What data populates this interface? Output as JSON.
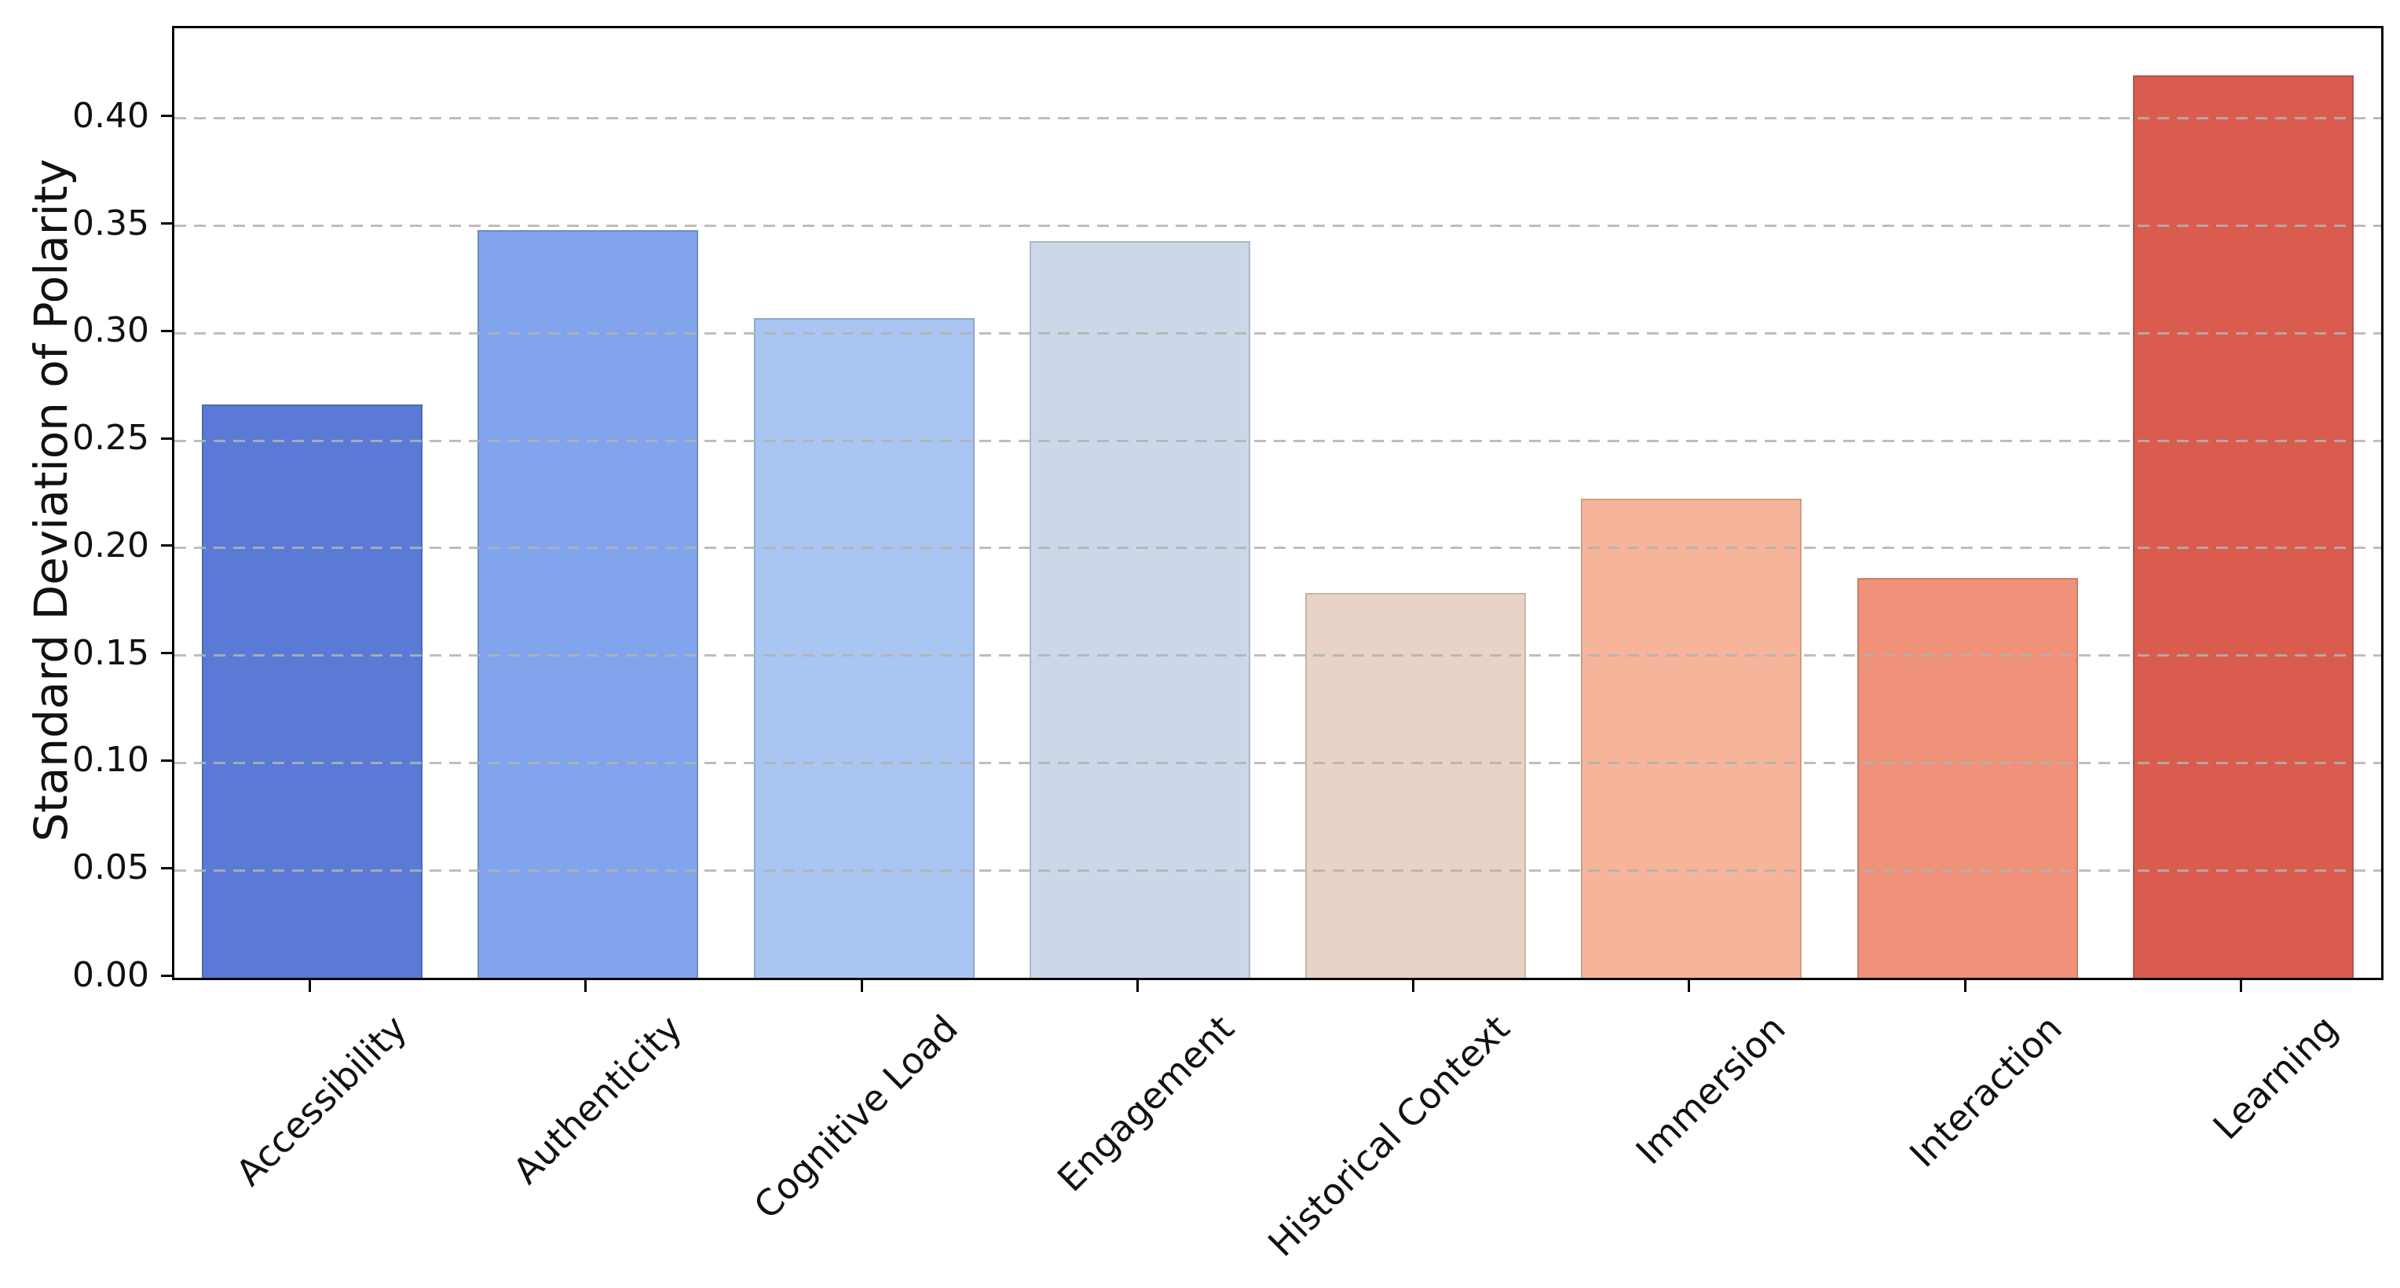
{
  "figure": {
    "background_color": "#ffffff",
    "spine_color": "#000000",
    "grid_color": "#b2b2b2",
    "text_color": "#111111"
  },
  "chart_data": {
    "type": "bar",
    "title": "",
    "xlabel": "",
    "ylabel": "Standard Deviation of Polarity",
    "categories": [
      "Accessibility",
      "Authenticity",
      "Cognitive Load",
      "Engagement",
      "Historical Context",
      "Immersion",
      "Interaction",
      "Learning"
    ],
    "values": [
      0.267,
      0.348,
      0.307,
      0.343,
      0.179,
      0.223,
      0.186,
      0.42
    ],
    "bar_colors": [
      "#5a7ad6",
      "#81a4ec",
      "#a9c5f1",
      "#ccd8e9",
      "#e9d3c6",
      "#f6b59b",
      "#f0917a",
      "#d95c4f"
    ],
    "ylim": [
      0,
      0.442
    ],
    "yticks": [
      0.0,
      0.05,
      0.1,
      0.15,
      0.2,
      0.25,
      0.3,
      0.35,
      0.4
    ],
    "ytick_labels": [
      "0.00",
      "0.05",
      "0.10",
      "0.15",
      "0.20",
      "0.25",
      "0.30",
      "0.35",
      "0.40"
    ],
    "grid": "horizontal-dashed",
    "legend": "none",
    "x_tick_label_rotation_deg": 45,
    "bar_width_frac": 0.8
  }
}
